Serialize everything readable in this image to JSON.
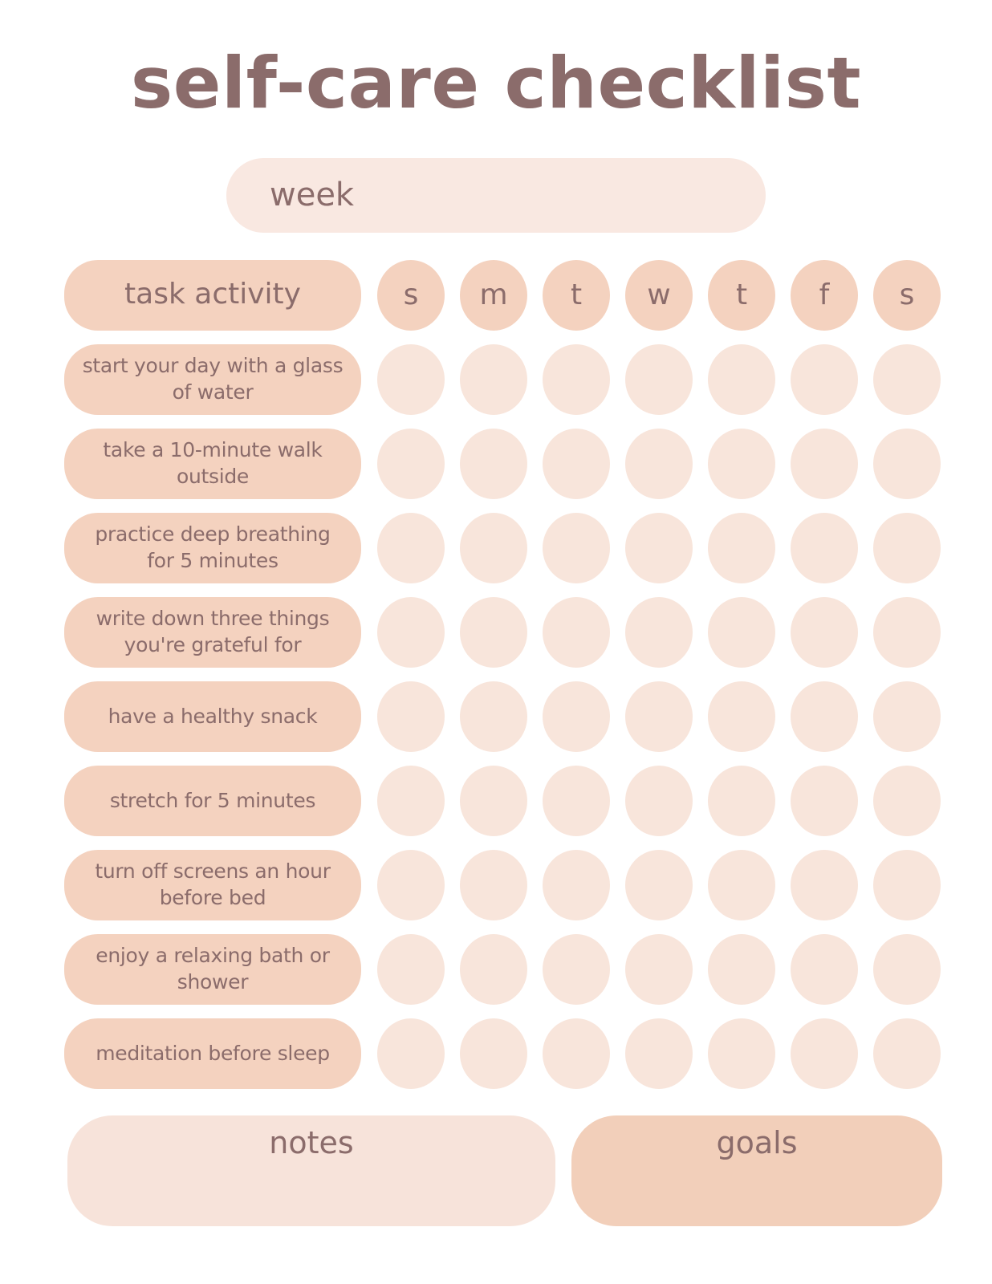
{
  "title": "self-care checklist",
  "week": {
    "label": "week",
    "value": ""
  },
  "table": {
    "header": {
      "task_column_label": "task activity",
      "days": [
        "s",
        "m",
        "t",
        "w",
        "t",
        "f",
        "s"
      ]
    },
    "tasks": [
      "start your day with a glass of water",
      "take a 10-minute walk outside",
      "practice deep breathing for 5 minutes",
      "write down three things you're grateful for",
      "have a healthy snack",
      "stretch for 5 minutes",
      "turn off screens an hour before bed",
      "enjoy a relaxing bath or shower",
      "meditation before sleep"
    ]
  },
  "footer": {
    "notes_label": "notes",
    "goals_label": "goals"
  },
  "colors": {
    "text": "#8b6c6b",
    "pill-peach": "#f4d2bf",
    "circle-light": "#f8e5db",
    "week-pill": "#f9e8e1",
    "notes-box": "#f7e3da",
    "goals-box": "#f2cfba",
    "background": "#ffffff"
  }
}
